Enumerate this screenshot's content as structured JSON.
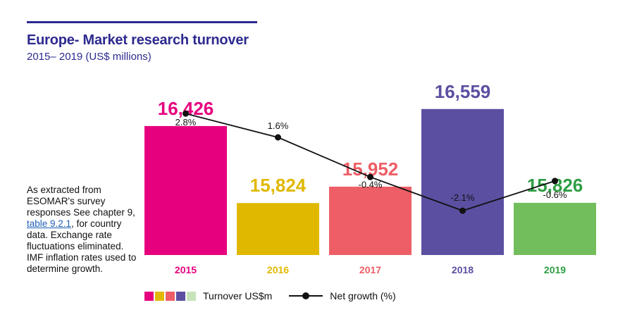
{
  "header": {
    "title": "Europe- Market research turnover",
    "subtitle": "2015– 2019 (US$ millions)"
  },
  "note": {
    "text_before": "As extracted from ESOMAR's survey responses See chapter 9,",
    "link_text": "table 9.2.1",
    "text_after": ", for country data. Exchange rate fluctuations eliminated. IMF inflation rates used to determine growth."
  },
  "legend": {
    "bar_label": "Turnover US$m",
    "line_label": "Net growth (%)",
    "swatch_colors": [
      "#e6007e",
      "#e0b800",
      "#ee5e66",
      "#5b4fa1",
      "#c6e3b9"
    ]
  },
  "chart_data": {
    "type": "bar",
    "categories": [
      "2015",
      "2016",
      "2017",
      "2018",
      "2019"
    ],
    "series": [
      {
        "values": [
          16426,
          15824,
          15952,
          16559,
          15826
        ],
        "value_labels": [
          "16,426",
          "15,824",
          "15,952",
          "16,559",
          "15,826"
        ],
        "colors": [
          "#e6007e",
          "#e0b800",
          "#ee5e66",
          "#5b4fa1",
          "#73be5c"
        ],
        "label_colors": [
          "#e6007e",
          "#e0b800",
          "#ee5e66",
          "#5b4fa1",
          "#2e9e43"
        ]
      },
      {
        "type": "line",
        "values": [
          2.8,
          1.6,
          -0.4,
          -2.1,
          -0.6
        ],
        "value_labels": [
          "2.8%",
          "1.6%",
          "-0.4%",
          "-2.1%",
          "-0.6%"
        ],
        "color": "#111111"
      }
    ],
    "xlabel": "",
    "ylabel": ""
  }
}
